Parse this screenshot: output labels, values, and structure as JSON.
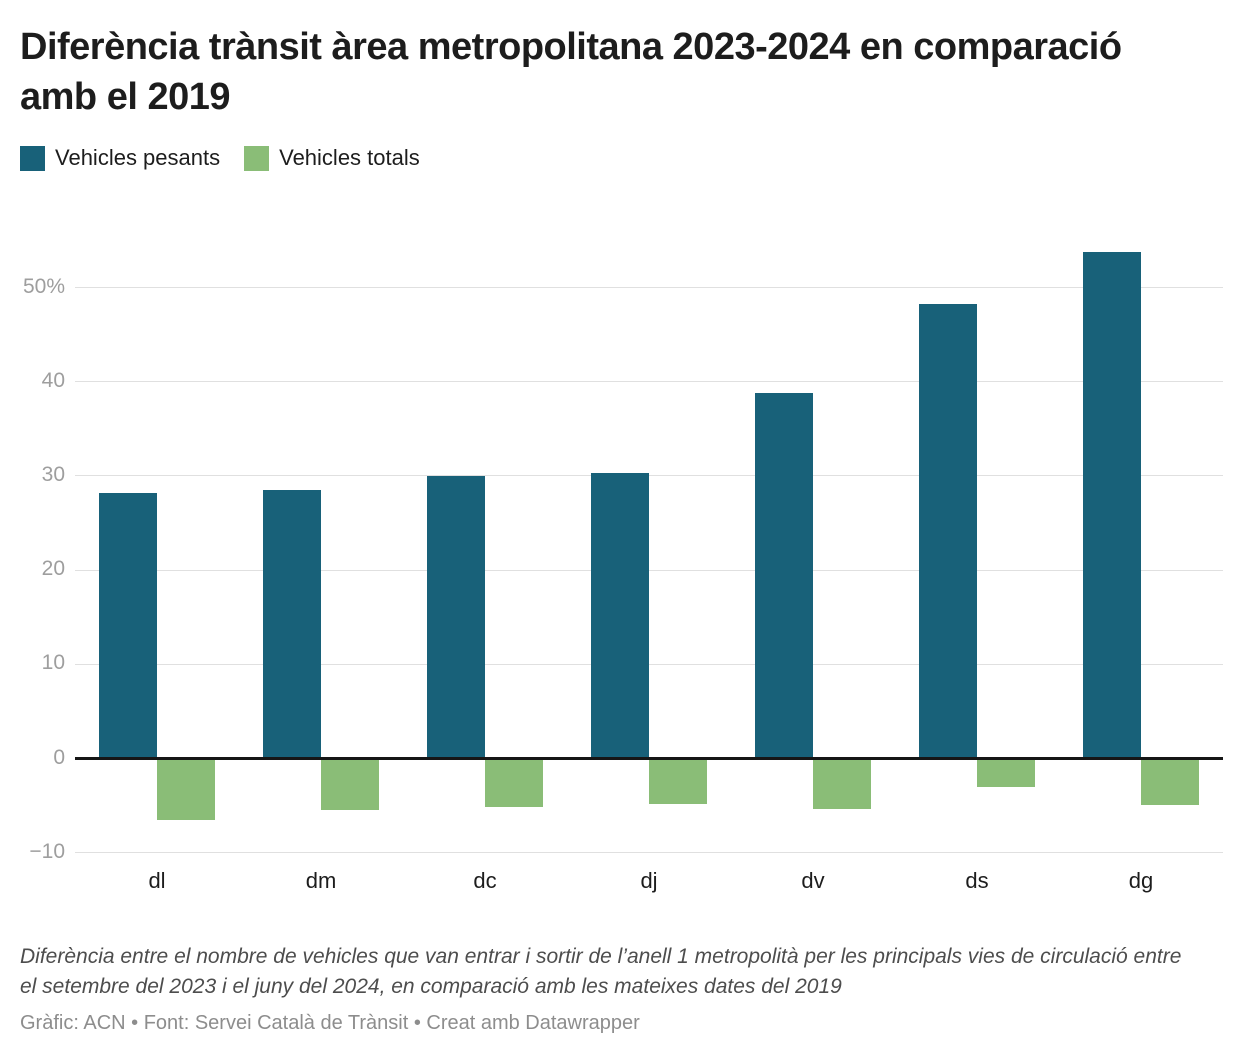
{
  "title": "Diferència trànsit àrea metropolitana 2023-2024 en comparació amb el 2019",
  "legend": {
    "0": {
      "label": "Vehicles pesants",
      "color": "#186179"
    },
    "1": {
      "label": "Vehicles totals",
      "color": "#8abd77"
    }
  },
  "chart_data": {
    "type": "bar",
    "categories": [
      "dl",
      "dm",
      "dc",
      "dj",
      "dv",
      "ds",
      "dg"
    ],
    "series": [
      {
        "name": "Vehicles pesants",
        "color": "#186179",
        "values": [
          28.2,
          28.5,
          30.0,
          30.3,
          38.8,
          48.3,
          53.8
        ]
      },
      {
        "name": "Vehicles totals",
        "color": "#8abd77",
        "values": [
          -6.5,
          -5.5,
          -5.2,
          -4.8,
          -5.4,
          -3.0,
          -4.9
        ]
      }
    ],
    "title": "Diferència trànsit àrea metropolitana 2023-2024 en comparació amb el 2019",
    "xlabel": "",
    "ylabel": "",
    "ylim": [
      -10,
      55
    ],
    "yticks": [
      50,
      40,
      30,
      20,
      10,
      0,
      -10
    ],
    "ytick_labels": [
      "50%",
      "40",
      "30",
      "20",
      "10",
      "0",
      "−10"
    ],
    "grid": true,
    "zero_line": true,
    "legend_position": "top-left",
    "grid_color": "#e0e0e0",
    "zero_line_color": "#161616",
    "ytick_color": "#9e9e9e",
    "xtick_color": "#1d1d1d"
  },
  "footer": {
    "note": "Diferència entre el nombre de vehicles que van entrar i sortir de l’anell 1 metropolità per les principals vies de circulació entre el setembre del 2023 i el juny del 2024, en comparació amb les mateixes dates del 2019",
    "credit": "Gràfic: ACN • Font: Servei Català de Trànsit • Creat amb Datawrapper"
  }
}
